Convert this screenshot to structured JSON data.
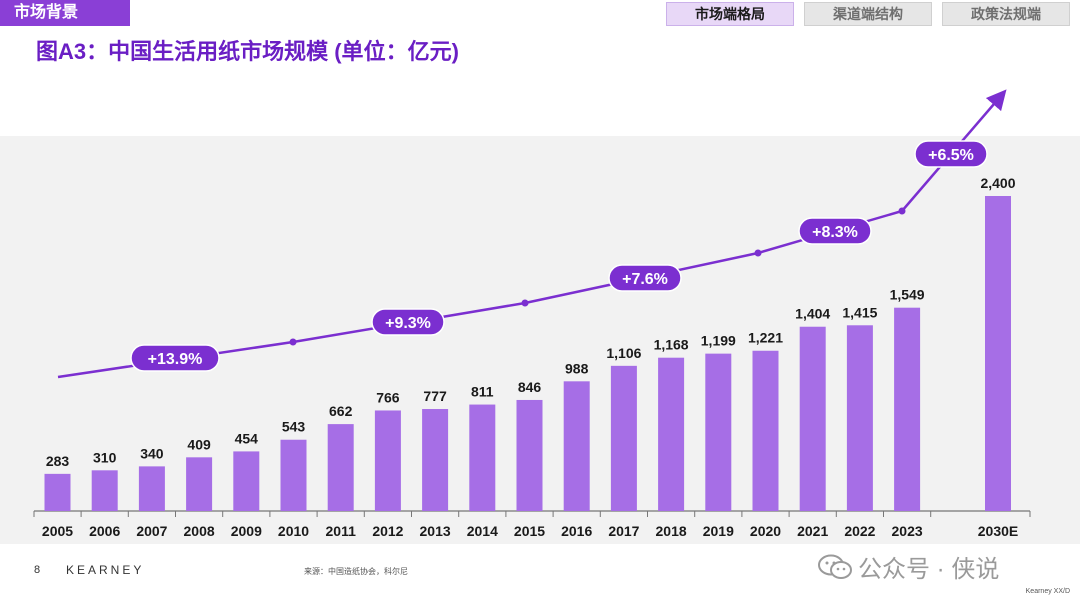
{
  "header": {
    "section_tag": "市场背景",
    "tabs": [
      {
        "label": "市场端格局",
        "active": true
      },
      {
        "label": "渠道端结构",
        "active": false
      },
      {
        "label": "政策法规端",
        "active": false
      }
    ]
  },
  "title": "图A3：中国生活用纸市场规模 (单位：亿元)",
  "chart_data": {
    "type": "bar",
    "categories": [
      "2005",
      "2006",
      "2007",
      "2008",
      "2009",
      "2010",
      "2011",
      "2012",
      "2013",
      "2014",
      "2015",
      "2016",
      "2017",
      "2018",
      "2019",
      "2020",
      "2021",
      "2022",
      "2023",
      "2030E"
    ],
    "values": [
      283,
      310,
      340,
      409,
      454,
      543,
      662,
      766,
      777,
      811,
      846,
      988,
      1106,
      1168,
      1199,
      1221,
      1404,
      1415,
      1549,
      2400
    ],
    "value_labels": [
      "283",
      "310",
      "340",
      "409",
      "454",
      "543",
      "662",
      "766",
      "777",
      "811",
      "846",
      "988",
      "1,106",
      "1,168",
      "1,199",
      "1,221",
      "1,404",
      "1,415",
      "1,549",
      "2,400"
    ],
    "ylim": [
      0,
      2400
    ],
    "bar_color": "#a66ee6",
    "growth_annotations": [
      {
        "label": "+13.9%",
        "period": "2005-2010"
      },
      {
        "label": "+9.3%",
        "period": "2010-2015"
      },
      {
        "label": "+7.6%",
        "period": "2015-2020"
      },
      {
        "label": "+8.3%",
        "period": "2020-2023"
      },
      {
        "label": "+6.5%",
        "period": "2023-2030E"
      }
    ],
    "annotation_color": "#7b2fd0"
  },
  "footer": {
    "page_number": "8",
    "logo": "KEARNEY",
    "source": "来源：中国造纸协会，科尔尼",
    "code": "Kearney XX/D"
  },
  "watermark": {
    "text": "公众号 · 侠说",
    "icon": "wechat-icon"
  }
}
